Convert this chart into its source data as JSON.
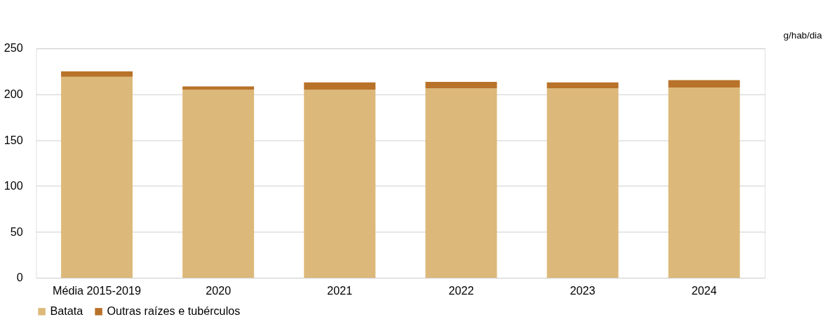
{
  "chart_data": {
    "type": "bar",
    "stacked": true,
    "ylabel": "g/hab/dia",
    "categories": [
      "Média 2015-2019",
      "2020",
      "2021",
      "2022",
      "2023",
      "2024"
    ],
    "series": [
      {
        "name": "Batata",
        "color": "#dcb97a",
        "values": [
          219,
          205,
          205,
          206.5,
          206.5,
          207.5
        ]
      },
      {
        "name": "Outras raízes e tubérculos",
        "color": "#b87229",
        "values": [
          6,
          3.5,
          8,
          7,
          6.5,
          8
        ]
      }
    ],
    "ylim": [
      0,
      250
    ],
    "yticks": [
      0,
      50,
      100,
      150,
      200,
      250
    ],
    "grid": "y",
    "legend": "bottom"
  }
}
